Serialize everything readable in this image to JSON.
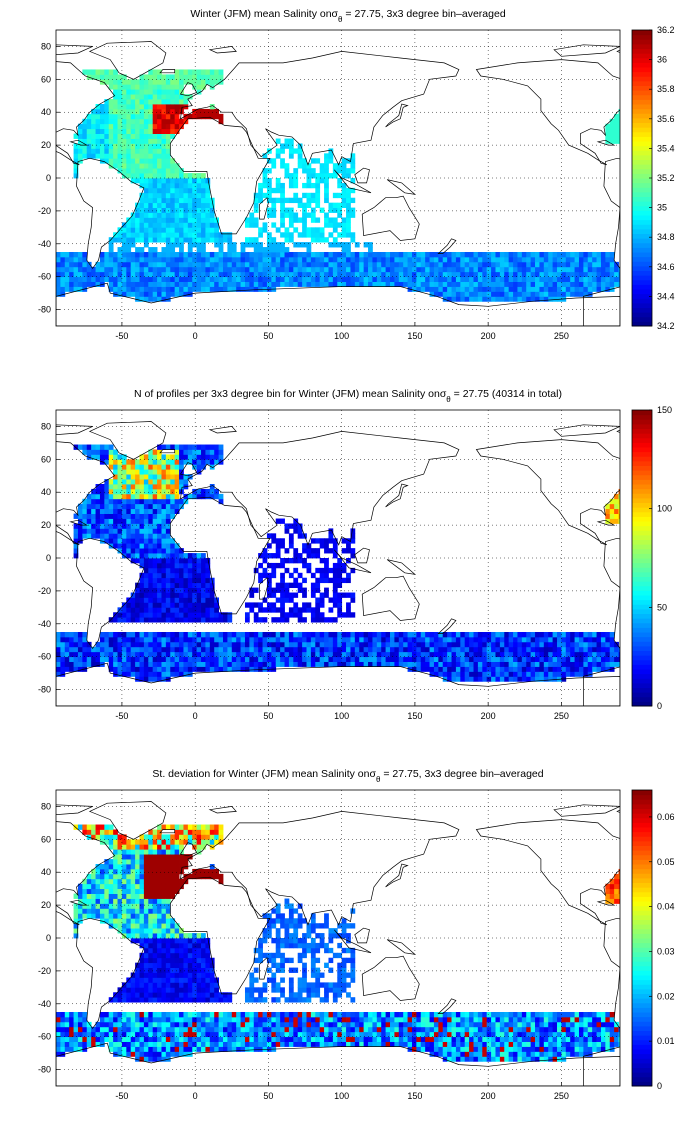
{
  "figure": {
    "panels": [
      {
        "id": "salinity",
        "title_pre": "Winter (JFM) mean Salinity on",
        "title_sym": "σ",
        "title_sub": "θ",
        "title_post": " = 27.75, 3x3 degree bin–averaged",
        "colorbar": {
          "ticks": [
            "34.2",
            "34.4",
            "34.6",
            "34.8",
            "35",
            "35.2",
            "35.4",
            "35.6",
            "35.8",
            "36",
            "36.2"
          ],
          "min": 34.2,
          "max": 36.2
        }
      },
      {
        "id": "profiles",
        "title_pre": "N of profiles per 3x3 degree bin for Winter (JFM) mean Salinity on",
        "title_sym": "σ",
        "title_sub": "θ",
        "title_post": " = 27.75 (40314 in total)",
        "colorbar": {
          "ticks": [
            "0",
            "50",
            "100",
            "150"
          ],
          "min": 0,
          "max": 150
        }
      },
      {
        "id": "stdev",
        "title_pre": "St. deviation for Winter (JFM) mean Salinity on",
        "title_sym": "σ",
        "title_sub": "θ",
        "title_post": " = 27.75, 3x3 degree bin–averaged",
        "colorbar": {
          "ticks": [
            "0",
            "0.01",
            "0.02",
            "0.03",
            "0.04",
            "0.05",
            "0.06"
          ],
          "min": 0,
          "max": 0.066
        }
      }
    ]
  },
  "chart_data": [
    {
      "type": "heatmap",
      "title": "Winter (JFM) mean Salinity on σθ = 27.75, 3x3 degree bin–averaged",
      "xlim": [
        -95,
        290
      ],
      "ylim": [
        -90,
        90
      ],
      "xticks": [
        -50,
        0,
        50,
        100,
        150,
        200,
        250
      ],
      "yticks": [
        -80,
        -60,
        -40,
        -20,
        0,
        20,
        40,
        60,
        80
      ],
      "grid": true,
      "colormap": "jet",
      "colorbar_range": [
        34.2,
        36.2
      ],
      "regions": [
        {
          "lon": [
            -80,
            20
          ],
          "lat": [
            0,
            60
          ],
          "value": 35.0
        },
        {
          "lon": [
            -30,
            0
          ],
          "lat": [
            25,
            45
          ],
          "value": 35.9
        },
        {
          "lon": [
            0,
            30
          ],
          "lat": [
            32,
            42
          ],
          "value": 36.1
        },
        {
          "lon": [
            -60,
            20
          ],
          "lat": [
            -40,
            0
          ],
          "value": 34.75
        },
        {
          "lon": [
            -95,
            290
          ],
          "lat": [
            -75,
            -45
          ],
          "value": 34.6
        },
        {
          "lon": [
            30,
            110
          ],
          "lat": [
            -40,
            25
          ],
          "value": 34.8
        }
      ]
    },
    {
      "type": "heatmap",
      "title": "N of profiles per 3x3 degree bin for Winter (JFM) mean Salinity on σθ = 27.75 (40314 in total)",
      "xlim": [
        -95,
        290
      ],
      "ylim": [
        -90,
        90
      ],
      "xticks": [
        -50,
        0,
        50,
        100,
        150,
        200,
        250
      ],
      "yticks": [
        -80,
        -60,
        -40,
        -20,
        0,
        20,
        40,
        60,
        80
      ],
      "grid": true,
      "colormap": "jet",
      "colorbar_range": [
        0,
        150
      ],
      "regions": [
        {
          "lon": [
            -60,
            -10
          ],
          "lat": [
            35,
            65
          ],
          "value": 80
        },
        {
          "lon": [
            -80,
            20
          ],
          "lat": [
            -40,
            35
          ],
          "value": 15
        },
        {
          "lon": [
            -95,
            290
          ],
          "lat": [
            -75,
            -45
          ],
          "value": 20
        },
        {
          "lon": [
            30,
            110
          ],
          "lat": [
            -40,
            25
          ],
          "value": 10
        }
      ]
    },
    {
      "type": "heatmap",
      "title": "St. deviation for Winter (JFM) mean Salinity on σθ = 27.75, 3x3 degree bin–averaged",
      "xlim": [
        -95,
        290
      ],
      "ylim": [
        -90,
        90
      ],
      "xticks": [
        -50,
        0,
        50,
        100,
        150,
        200,
        250
      ],
      "yticks": [
        -80,
        -60,
        -40,
        -20,
        0,
        20,
        40,
        60,
        80
      ],
      "grid": true,
      "colormap": "jet",
      "colorbar_range": [
        0,
        0.066
      ],
      "regions": [
        {
          "lon": [
            -35,
            5
          ],
          "lat": [
            25,
            50
          ],
          "value": 0.066
        },
        {
          "lon": [
            -80,
            20
          ],
          "lat": [
            -40,
            25
          ],
          "value": 0.005
        },
        {
          "lon": [
            -95,
            290
          ],
          "lat": [
            -75,
            -45
          ],
          "value": 0.015
        },
        {
          "lon": [
            30,
            110
          ],
          "lat": [
            -40,
            25
          ],
          "value": 0.008
        }
      ]
    }
  ]
}
